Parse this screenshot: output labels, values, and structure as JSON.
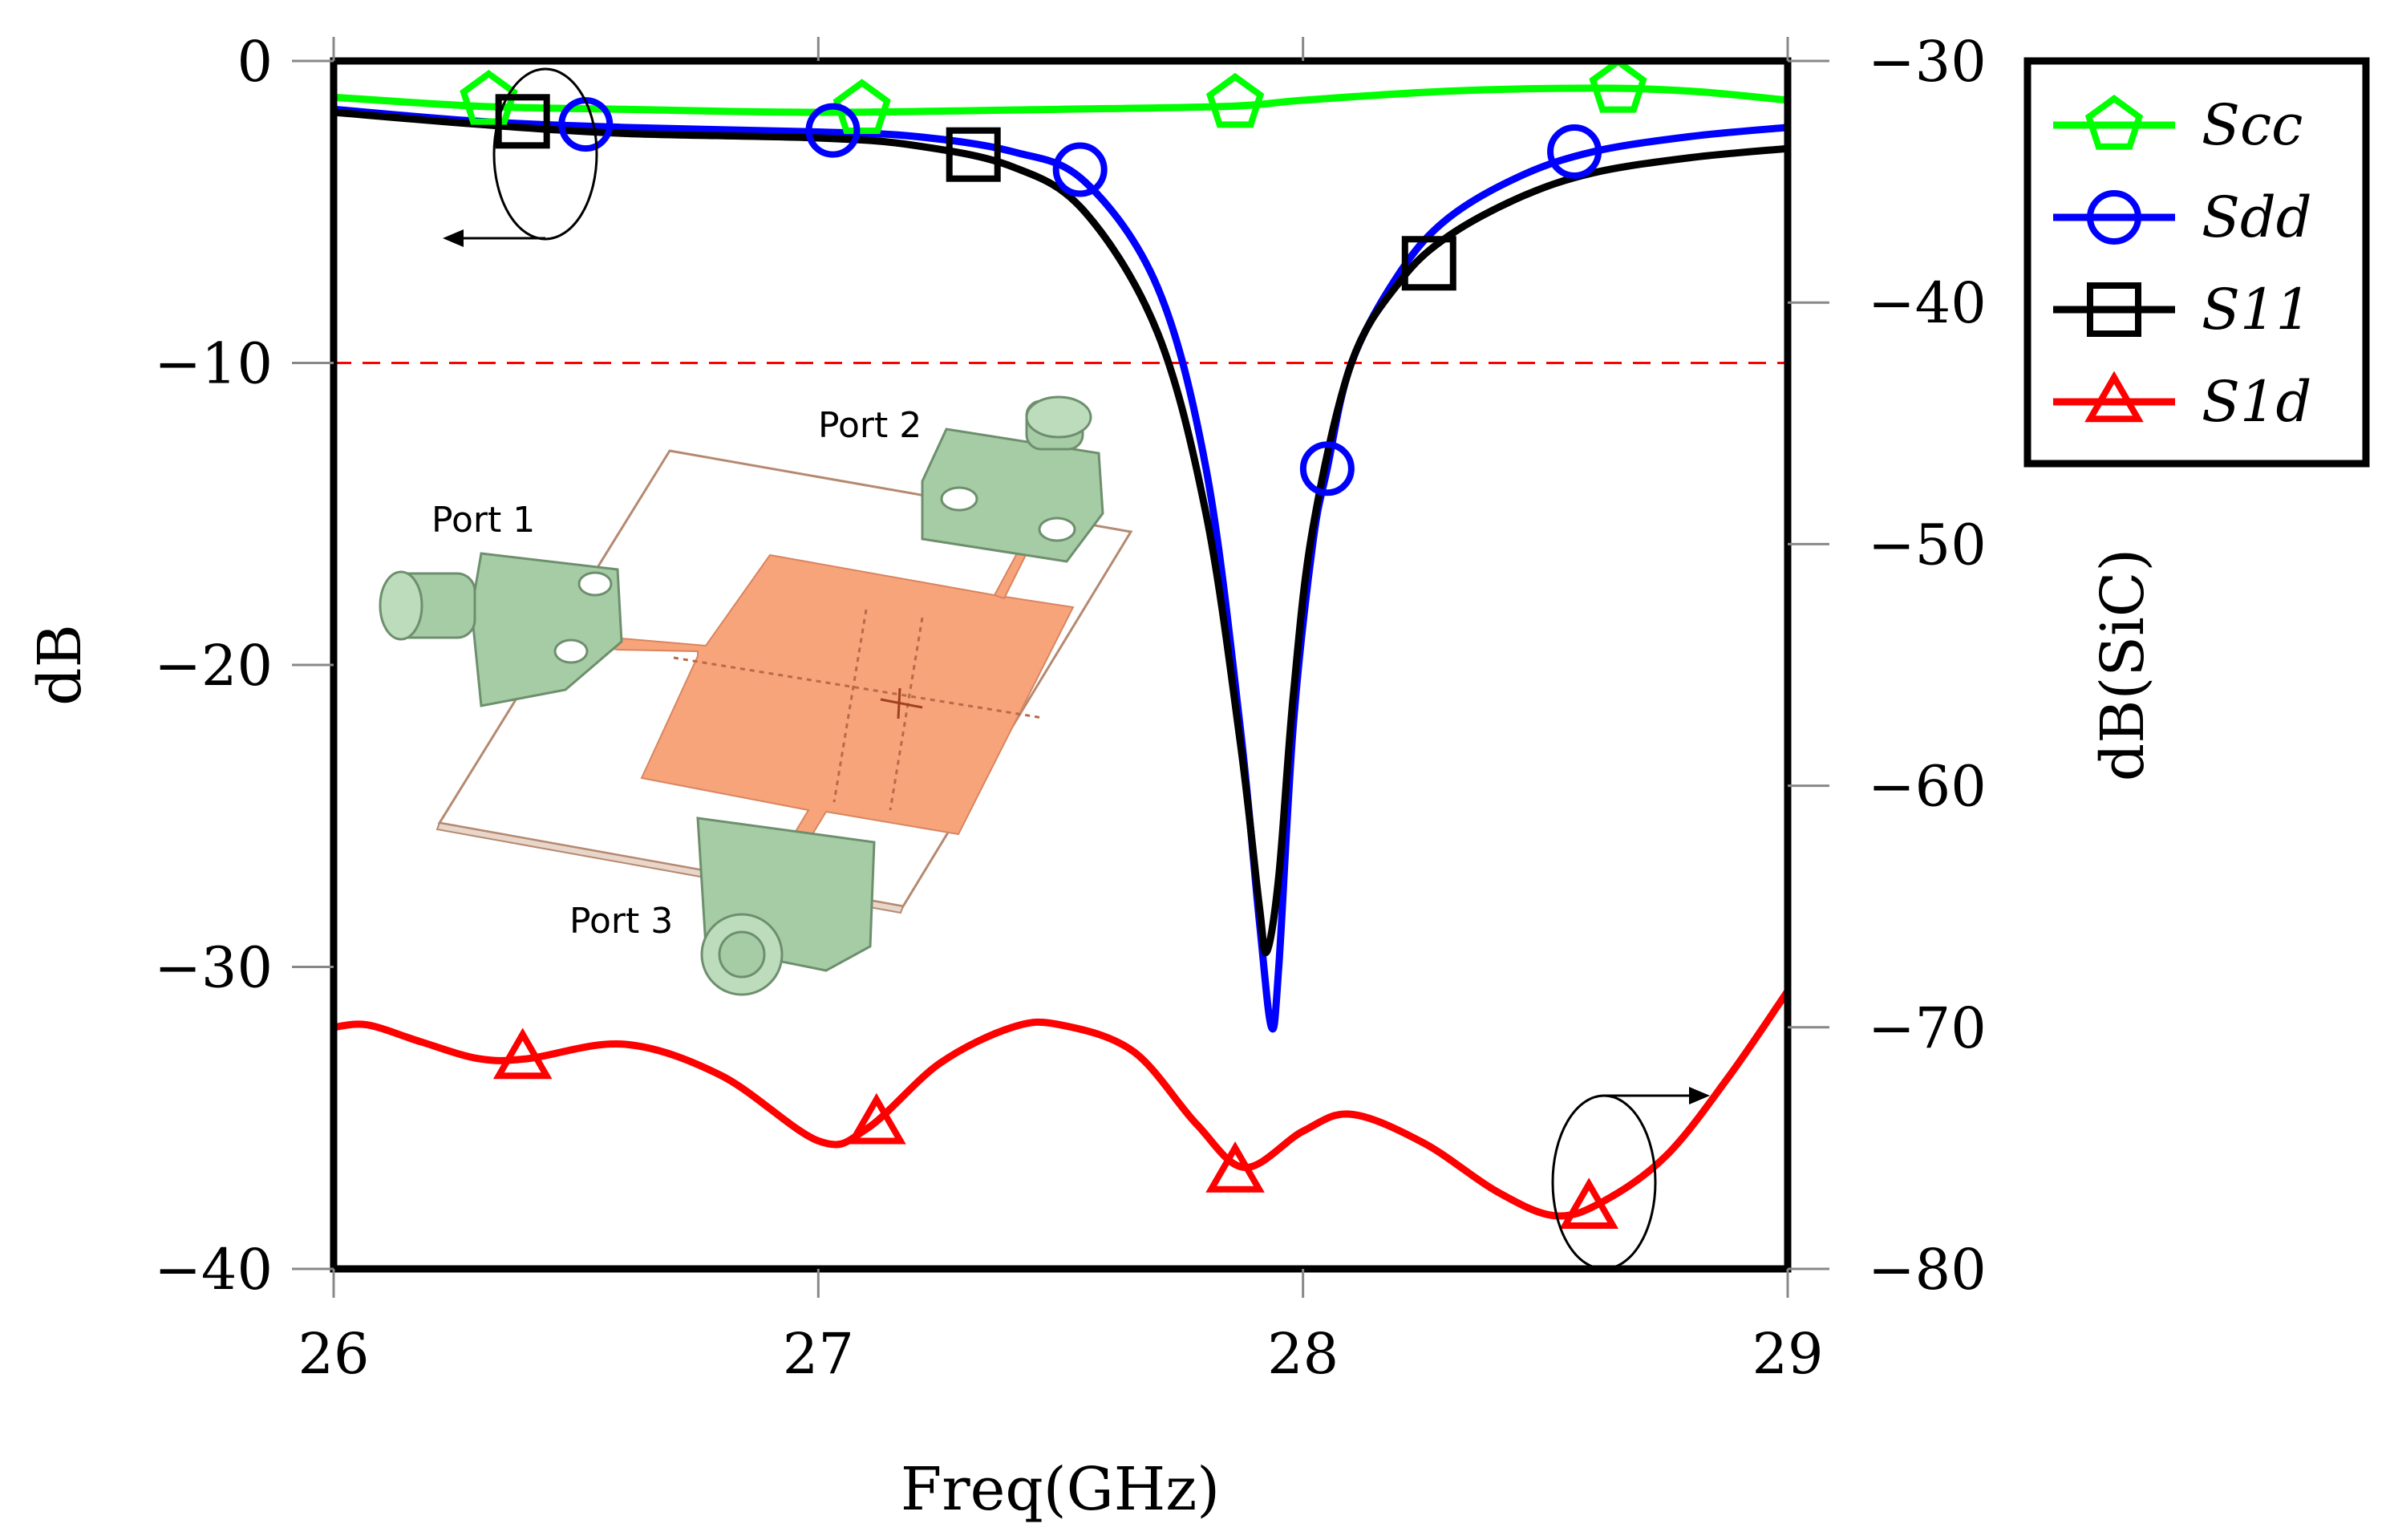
{
  "chart_data": {
    "type": "line",
    "x": {
      "label": "Freq(GHz)",
      "range": [
        26,
        29
      ],
      "ticks": [
        26,
        27,
        28,
        29
      ],
      "tick_labels": [
        "26",
        "27",
        "28",
        "29"
      ]
    },
    "y_left": {
      "label": "dB",
      "range": [
        -40,
        0
      ],
      "ticks": [
        0,
        -10,
        -20,
        -30,
        -40
      ],
      "tick_labels": [
        "0",
        "−10",
        "−20",
        "−30",
        "−40"
      ]
    },
    "y_right": {
      "label": "dB(SiC)",
      "range": [
        -80,
        -30
      ],
      "ticks": [
        -30,
        -40,
        -50,
        -60,
        -70,
        -80
      ],
      "tick_labels": [
        "−30",
        "−40",
        "−50",
        "−60",
        "−70",
        "−80"
      ]
    },
    "reference_line": {
      "y": -10,
      "axis": "left",
      "color": "#ff0000",
      "style": "dashed"
    },
    "legend": {
      "position": "outside-top-right",
      "entries": [
        {
          "name": "Scc",
          "color": "#00ff00",
          "marker": "pentagon"
        },
        {
          "name": "Sdd",
          "color": "#0000ff",
          "marker": "circle"
        },
        {
          "name": "S11",
          "color": "#000000",
          "marker": "square"
        },
        {
          "name": "S1d",
          "color": "#ff0000",
          "marker": "triangle"
        }
      ]
    },
    "series": [
      {
        "name": "Scc",
        "axis": "left",
        "color": "#00ff00",
        "marker": "pentagon",
        "points": [
          [
            26.0,
            -1.2
          ],
          [
            26.3,
            -1.5
          ],
          [
            26.6,
            -1.6
          ],
          [
            27.0,
            -1.7
          ],
          [
            27.5,
            -1.6
          ],
          [
            27.85,
            -1.5
          ],
          [
            28.0,
            -1.3
          ],
          [
            28.3,
            -1.0
          ],
          [
            28.6,
            -0.9
          ],
          [
            28.8,
            -1.0
          ],
          [
            29.0,
            -1.3
          ]
        ],
        "markers": [
          [
            26.32,
            -1.3
          ],
          [
            27.09,
            -1.6
          ],
          [
            27.86,
            -1.4
          ],
          [
            28.65,
            -0.9
          ]
        ]
      },
      {
        "name": "Sdd",
        "axis": "left",
        "color": "#0000ff",
        "marker": "circle",
        "points": [
          [
            26.0,
            -1.6
          ],
          [
            26.3,
            -2.0
          ],
          [
            26.6,
            -2.2
          ],
          [
            27.0,
            -2.35
          ],
          [
            27.2,
            -2.5
          ],
          [
            27.4,
            -3.0
          ],
          [
            27.55,
            -4.0
          ],
          [
            27.7,
            -7.5
          ],
          [
            27.8,
            -13.5
          ],
          [
            27.87,
            -22.0
          ],
          [
            27.91,
            -28.5
          ],
          [
            27.935,
            -32.0
          ],
          [
            27.95,
            -30.0
          ],
          [
            27.98,
            -22.0
          ],
          [
            28.02,
            -16.0
          ],
          [
            28.05,
            -13.5
          ],
          [
            28.1,
            -10.0
          ],
          [
            28.2,
            -7.0
          ],
          [
            28.3,
            -5.2
          ],
          [
            28.45,
            -3.8
          ],
          [
            28.6,
            -3.0
          ],
          [
            28.8,
            -2.5
          ],
          [
            29.0,
            -2.2
          ]
        ],
        "markers": [
          [
            26.52,
            -2.1
          ],
          [
            27.03,
            -2.3
          ],
          [
            27.54,
            -3.6
          ],
          [
            28.05,
            -13.5
          ],
          [
            28.56,
            -3.0
          ]
        ]
      },
      {
        "name": "S11",
        "axis": "left",
        "color": "#000000",
        "marker": "square",
        "points": [
          [
            26.0,
            -1.7
          ],
          [
            26.3,
            -2.1
          ],
          [
            26.6,
            -2.4
          ],
          [
            27.0,
            -2.55
          ],
          [
            27.2,
            -2.8
          ],
          [
            27.4,
            -3.5
          ],
          [
            27.55,
            -5.0
          ],
          [
            27.7,
            -9.0
          ],
          [
            27.8,
            -15.0
          ],
          [
            27.87,
            -22.5
          ],
          [
            27.91,
            -28.0
          ],
          [
            27.925,
            -29.5
          ],
          [
            27.95,
            -27.0
          ],
          [
            27.98,
            -21.0
          ],
          [
            28.02,
            -15.5
          ],
          [
            28.1,
            -10.0
          ],
          [
            28.2,
            -7.3
          ],
          [
            28.3,
            -5.8
          ],
          [
            28.45,
            -4.5
          ],
          [
            28.6,
            -3.7
          ],
          [
            28.8,
            -3.2
          ],
          [
            29.0,
            -2.9
          ]
        ],
        "markers": [
          [
            26.39,
            -2.0
          ],
          [
            27.32,
            -3.1
          ],
          [
            28.26,
            -6.7
          ]
        ]
      },
      {
        "name": "S1d",
        "axis": "right",
        "color": "#ff0000",
        "marker": "triangle",
        "points": [
          [
            26.0,
            -70.0
          ],
          [
            26.07,
            -69.9
          ],
          [
            26.18,
            -70.6
          ],
          [
            26.3,
            -71.3
          ],
          [
            26.4,
            -71.3
          ],
          [
            26.6,
            -70.7
          ],
          [
            26.8,
            -72.0
          ],
          [
            27.0,
            -74.7
          ],
          [
            27.1,
            -74.2
          ],
          [
            27.25,
            -71.5
          ],
          [
            27.4,
            -70.0
          ],
          [
            27.5,
            -69.9
          ],
          [
            27.65,
            -71.0
          ],
          [
            27.78,
            -74.0
          ],
          [
            27.88,
            -75.8
          ],
          [
            28.0,
            -74.3
          ],
          [
            28.1,
            -73.6
          ],
          [
            28.25,
            -74.8
          ],
          [
            28.4,
            -76.8
          ],
          [
            28.52,
            -77.8
          ],
          [
            28.62,
            -77.2
          ],
          [
            28.75,
            -75.3
          ],
          [
            28.88,
            -72.0
          ],
          [
            29.0,
            -68.5
          ]
        ],
        "markers": [
          [
            26.39,
            -71.3
          ],
          [
            27.12,
            -74.0
          ],
          [
            27.86,
            -76.0
          ],
          [
            28.59,
            -77.5
          ]
        ]
      }
    ],
    "annotations": [
      {
        "type": "ellipse-arrow",
        "target_axis": "left",
        "direction": "left"
      },
      {
        "type": "ellipse-arrow",
        "target_axis": "right",
        "direction": "right"
      }
    ],
    "inset": {
      "description_labels": [
        "Port 1",
        "Port 2",
        "Port 3"
      ]
    }
  }
}
